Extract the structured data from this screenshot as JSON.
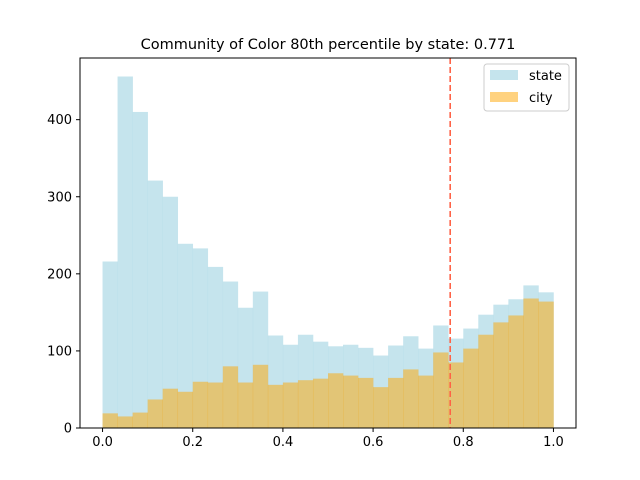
{
  "chart_data": {
    "type": "histogram",
    "title": "Community of Color 80th percentile by state: 0.771",
    "xlabel": "",
    "ylabel": "",
    "xlim": [
      -0.05,
      1.05
    ],
    "ylim": [
      0,
      480
    ],
    "x_ticks": [
      0.0,
      0.2,
      0.4,
      0.6,
      0.8,
      1.0
    ],
    "x_tick_labels": [
      "0.0",
      "0.2",
      "0.4",
      "0.6",
      "0.8",
      "1.0"
    ],
    "y_ticks": [
      0,
      100,
      200,
      300,
      400
    ],
    "y_tick_labels": [
      "0",
      "100",
      "200",
      "300",
      "400"
    ],
    "bin_edges": [
      0.0,
      0.0333,
      0.0667,
      0.1,
      0.1333,
      0.1667,
      0.2,
      0.2333,
      0.2667,
      0.3,
      0.3333,
      0.3667,
      0.4,
      0.4333,
      0.4667,
      0.5,
      0.5333,
      0.5667,
      0.6,
      0.6333,
      0.6667,
      0.7,
      0.7333,
      0.7667,
      0.8,
      0.8333,
      0.8667,
      0.9,
      0.9333,
      0.9667,
      1.0
    ],
    "series": [
      {
        "name": "state",
        "color": "#add8e6",
        "opacity": 0.7,
        "values": [
          216,
          456,
          410,
          321,
          300,
          239,
          233,
          209,
          190,
          156,
          177,
          120,
          108,
          121,
          112,
          106,
          108,
          104,
          94,
          107,
          119,
          103,
          133,
          116,
          129,
          147,
          160,
          167,
          185,
          176
        ]
      },
      {
        "name": "city",
        "color": "#ffa500",
        "opacity": 0.5,
        "values": [
          19,
          15,
          20,
          37,
          51,
          47,
          60,
          59,
          80,
          59,
          82,
          56,
          59,
          62,
          64,
          71,
          68,
          65,
          53,
          65,
          76,
          68,
          98,
          85,
          103,
          121,
          137,
          146,
          168,
          164
        ]
      }
    ],
    "reference_line": {
      "x": 0.771,
      "color": "#ff6347",
      "style": "dashed"
    },
    "legend": {
      "position": "top-right",
      "entries": [
        "state",
        "city"
      ]
    },
    "grid": false
  }
}
